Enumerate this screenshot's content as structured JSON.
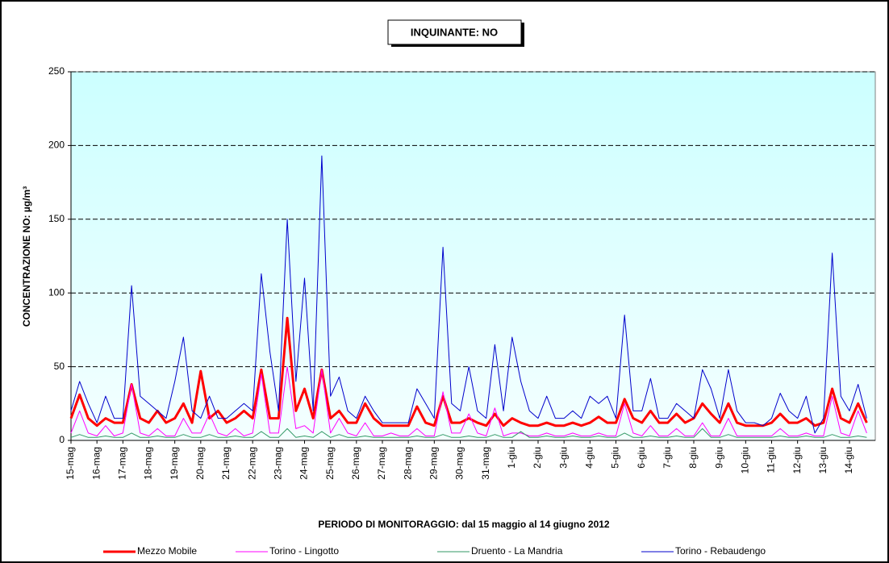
{
  "chart_data": {
    "type": "line",
    "title": "INQUINANTE: NO",
    "y_label": "CONCENTRAZIONE NO:  µg/m³",
    "x_label": "PERIODO DI MONITORAGGIO: dal 15 maggio al 14 giugno 2012",
    "categories": [
      "15-mag",
      null,
      null,
      "16-mag",
      null,
      null,
      "17-mag",
      null,
      null,
      "18-mag",
      null,
      null,
      "19-mag",
      null,
      null,
      "20-mag",
      null,
      null,
      "21-mag",
      null,
      null,
      "22-mag",
      null,
      null,
      "23-mag",
      null,
      null,
      "24-mag",
      null,
      null,
      "25-mag",
      null,
      null,
      "26-mag",
      null,
      null,
      "27-mag",
      null,
      null,
      "28-mag",
      null,
      null,
      "29-mag",
      null,
      null,
      "30-mag",
      null,
      null,
      "31-mag",
      null,
      null,
      "1-giu",
      null,
      null,
      "2-giu",
      null,
      null,
      "3-giu",
      null,
      null,
      "4-giu",
      null,
      null,
      "5-giu",
      null,
      null,
      "6-giu",
      null,
      null,
      "7-giu",
      null,
      null,
      "8-giu",
      null,
      null,
      "9-giu",
      null,
      null,
      "10-giu",
      null,
      null,
      "11-giu",
      null,
      null,
      "12-giu",
      null,
      null,
      "13-giu",
      null,
      null,
      "14-giu",
      null,
      null
    ],
    "series": [
      {
        "name": "Mezzo Mobile",
        "color": "#ff0000",
        "width": 3,
        "values": [
          15,
          31,
          15,
          10,
          15,
          12,
          12,
          38,
          15,
          12,
          20,
          12,
          15,
          25,
          12,
          47,
          15,
          20,
          12,
          15,
          20,
          15,
          48,
          15,
          15,
          83,
          20,
          35,
          15,
          48,
          15,
          20,
          12,
          12,
          25,
          15,
          10,
          10,
          10,
          10,
          23,
          12,
          10,
          30,
          12,
          12,
          15,
          12,
          10,
          18,
          10,
          15,
          12,
          10,
          10,
          12,
          10,
          10,
          12,
          10,
          12,
          16,
          12,
          12,
          28,
          15,
          12,
          20,
          12,
          12,
          18,
          12,
          15,
          25,
          18,
          12,
          25,
          12,
          10,
          10,
          10,
          12,
          18,
          12,
          12,
          15,
          10,
          12,
          35,
          15,
          12,
          25,
          12
        ]
      },
      {
        "name": "Torino - Lingotto",
        "color": "#ff00ff",
        "width": 1,
        "values": [
          5,
          20,
          5,
          3,
          10,
          3,
          5,
          38,
          5,
          3,
          8,
          3,
          3,
          15,
          5,
          5,
          18,
          5,
          3,
          8,
          3,
          5,
          45,
          5,
          5,
          50,
          8,
          10,
          5,
          48,
          5,
          15,
          5,
          3,
          12,
          3,
          3,
          5,
          3,
          3,
          8,
          3,
          3,
          33,
          5,
          5,
          18,
          5,
          3,
          22,
          3,
          5,
          5,
          3,
          3,
          5,
          3,
          3,
          5,
          3,
          3,
          5,
          3,
          3,
          25,
          5,
          3,
          10,
          3,
          3,
          8,
          3,
          3,
          12,
          3,
          3,
          15,
          3,
          3,
          3,
          3,
          3,
          8,
          3,
          3,
          5,
          3,
          3,
          30,
          5,
          3,
          20,
          5
        ]
      },
      {
        "name": "Druento - La Mandria",
        "color": "#339966",
        "width": 1,
        "values": [
          2,
          4,
          2,
          2,
          3,
          2,
          2,
          5,
          2,
          2,
          3,
          2,
          2,
          4,
          2,
          2,
          4,
          2,
          2,
          3,
          2,
          2,
          6,
          2,
          2,
          8,
          2,
          3,
          2,
          6,
          2,
          4,
          2,
          2,
          3,
          2,
          2,
          2,
          2,
          2,
          3,
          2,
          2,
          4,
          2,
          2,
          3,
          2,
          2,
          4,
          2,
          2,
          6,
          2,
          2,
          3,
          2,
          2,
          3,
          2,
          2,
          3,
          2,
          2,
          5,
          2,
          2,
          3,
          2,
          2,
          3,
          2,
          2,
          8,
          2,
          2,
          4,
          2,
          2,
          2,
          2,
          2,
          3,
          2,
          2,
          3,
          2,
          2,
          4,
          2,
          2,
          3,
          2
        ]
      },
      {
        "name": "Torino - Rebaudengo",
        "color": "#0000cc",
        "width": 1,
        "values": [
          20,
          40,
          25,
          12,
          30,
          15,
          15,
          105,
          30,
          25,
          20,
          15,
          40,
          70,
          20,
          15,
          30,
          15,
          15,
          20,
          25,
          20,
          113,
          60,
          20,
          150,
          40,
          110,
          20,
          193,
          30,
          43,
          20,
          15,
          30,
          20,
          12,
          12,
          12,
          12,
          35,
          25,
          15,
          131,
          25,
          20,
          50,
          20,
          15,
          65,
          20,
          70,
          40,
          20,
          15,
          30,
          15,
          15,
          20,
          15,
          30,
          25,
          30,
          15,
          85,
          20,
          20,
          42,
          15,
          15,
          25,
          20,
          15,
          48,
          35,
          15,
          48,
          20,
          12,
          12,
          10,
          15,
          32,
          20,
          15,
          30,
          5,
          15,
          127,
          30,
          20,
          38,
          15
        ]
      }
    ],
    "ylim": [
      0,
      250
    ],
    "yticks": [
      0,
      50,
      100,
      150,
      200,
      250
    ],
    "grid": true
  }
}
